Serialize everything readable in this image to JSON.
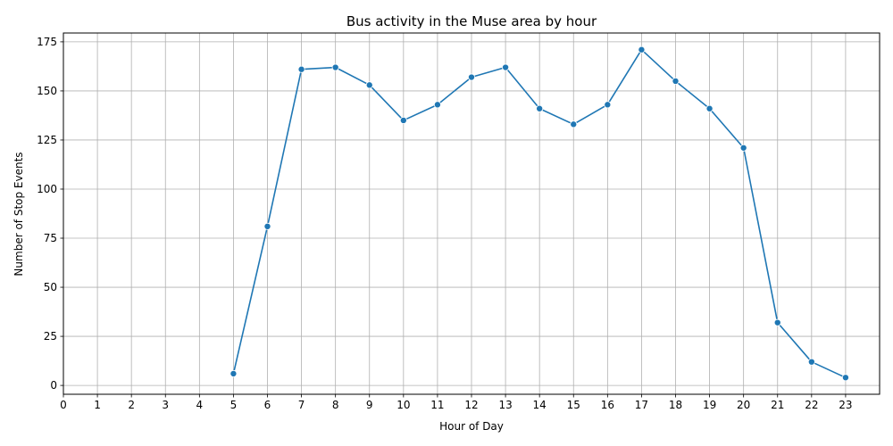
{
  "chart_data": {
    "type": "line",
    "title": "Bus activity in the Muse area by hour",
    "xlabel": "Hour of Day",
    "ylabel": "Number of Stop Events",
    "xlim": [
      0,
      24
    ],
    "ylim": [
      -4.5,
      179.5
    ],
    "xticks": [
      0,
      1,
      2,
      3,
      4,
      5,
      6,
      7,
      8,
      9,
      10,
      11,
      12,
      13,
      14,
      15,
      16,
      17,
      18,
      19,
      20,
      21,
      22,
      23
    ],
    "yticks": [
      0,
      25,
      50,
      75,
      100,
      125,
      150,
      175
    ],
    "grid": true,
    "series": [
      {
        "x": [
          5,
          6,
          7,
          8,
          9,
          10,
          11,
          12,
          13,
          14,
          15,
          16,
          17,
          18,
          19,
          20,
          21,
          22,
          23
        ],
        "y": [
          6,
          81,
          161,
          162,
          153,
          135,
          143,
          157,
          162,
          141,
          133,
          143,
          171,
          155,
          141,
          121,
          32,
          12,
          4
        ],
        "color": "#1f77b4",
        "marker": "circle"
      }
    ]
  }
}
